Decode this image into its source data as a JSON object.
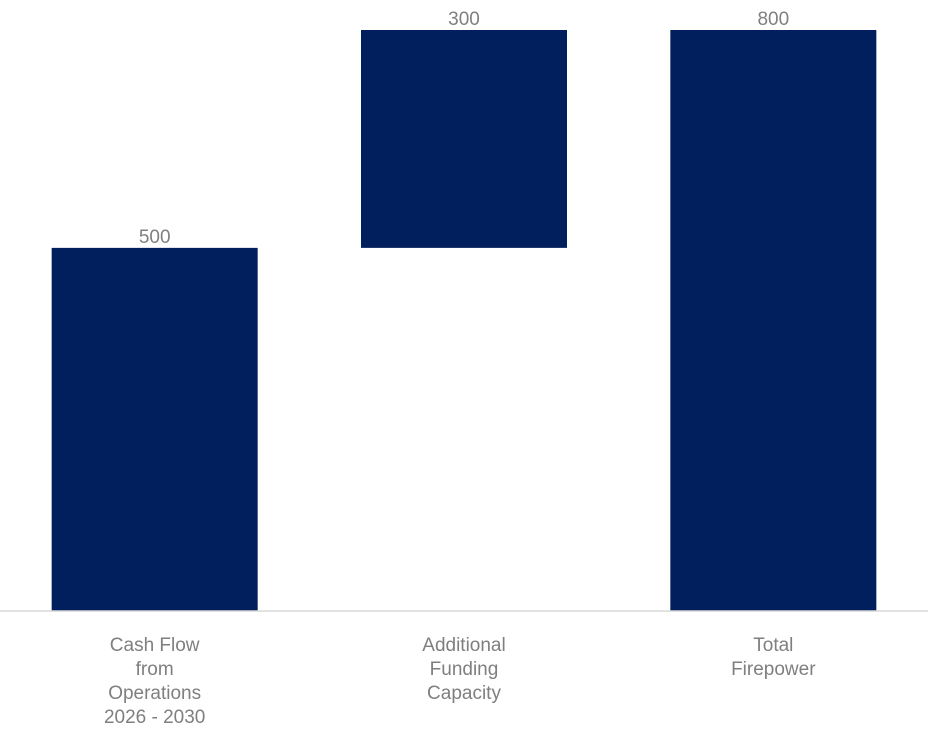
{
  "chart_data": {
    "type": "bar",
    "subtype": "waterfall",
    "categories": [
      [
        "Cash Flow",
        "from",
        "Operations",
        "2026 - 2030"
      ],
      [
        "Additional",
        "Funding",
        "Capacity"
      ],
      [
        "Total",
        "Firepower"
      ]
    ],
    "bars": [
      {
        "start": 0,
        "end": 500,
        "label": "500"
      },
      {
        "start": 500,
        "end": 800,
        "label": "300"
      },
      {
        "start": 0,
        "end": 800,
        "label": "800"
      }
    ],
    "ylim": [
      0,
      800
    ],
    "grid": false,
    "legend": "none",
    "colors": {
      "bar": "#001f5c",
      "axis": "#d9d9d9",
      "label": "#7f7f7f"
    }
  }
}
